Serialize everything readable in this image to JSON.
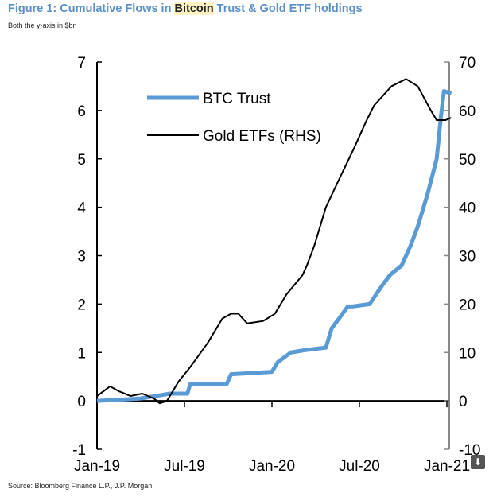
{
  "title_pre": "Figure 1: Cumulative Flows in ",
  "title_hl": "Bitcoin",
  "title_post": " Trust & Gold ETF holdings",
  "subtitle": "Both the y-axis in $bn",
  "source": "Source: Bloomberg Finance L.P., J.P. Morgan",
  "chart_data": {
    "type": "line",
    "title": "Figure 1: Cumulative Flows in Bitcoin Trust & Gold ETF holdings",
    "x_unit": "months since Jan-19",
    "xlim": [
      0,
      24
    ],
    "x_ticks": [
      {
        "v": 0,
        "label": "Jan-19"
      },
      {
        "v": 6,
        "label": "Jul-19"
      },
      {
        "v": 12,
        "label": "Jan-20"
      },
      {
        "v": 18,
        "label": "Jul-20"
      },
      {
        "v": 24,
        "label": "Jan-21"
      }
    ],
    "ylim_left": [
      -1,
      7
    ],
    "y_ticks_left": [
      "-1",
      "0",
      "1",
      "2",
      "3",
      "4",
      "5",
      "6",
      "7"
    ],
    "ylim_right": [
      -10,
      70
    ],
    "y_ticks_right": [
      "-10",
      "0",
      "10",
      "20",
      "30",
      "40",
      "50",
      "60",
      "70"
    ],
    "legend": "top-left",
    "series": [
      {
        "name": "BTC Trust",
        "axis": "left",
        "color": "#5b9bd5",
        "x": [
          0,
          2,
          3,
          4,
          5,
          6,
          6.2,
          6.4,
          8.9,
          9.2,
          12.0,
          12.4,
          13.3,
          14.3,
          15.7,
          16.1,
          16.6,
          17.2,
          17.5,
          18.7,
          19.6,
          20.1,
          20.9,
          21.5,
          22.0,
          22.7,
          23.3,
          23.6,
          23.8,
          24.3
        ],
        "y": [
          0,
          0.03,
          0.05,
          0.1,
          0.15,
          0.15,
          0.15,
          0.35,
          0.35,
          0.55,
          0.6,
          0.8,
          1.0,
          1.05,
          1.1,
          1.5,
          1.7,
          1.95,
          1.95,
          2.0,
          2.4,
          2.6,
          2.8,
          3.2,
          3.6,
          4.3,
          5.0,
          5.9,
          6.4,
          6.35
        ]
      },
      {
        "name": "Gold ETFs (RHS)",
        "axis": "right",
        "color": "#000000",
        "x": [
          0,
          0.9,
          1.5,
          2.3,
          3.1,
          3.9,
          4.3,
          4.8,
          5.6,
          6.4,
          7.6,
          8.6,
          9.2,
          9.7,
          10.3,
          11.4,
          12.2,
          13.0,
          14.1,
          14.4,
          14.9,
          15.7,
          16.8,
          17.6,
          18.5,
          19.0,
          20.2,
          21.2,
          22.0,
          22.9,
          23.3,
          23.9,
          24.3
        ],
        "y": [
          1,
          3,
          2,
          1,
          1.5,
          0.5,
          -0.5,
          0,
          4,
          7,
          12,
          17,
          18,
          18,
          16,
          16.5,
          18,
          22,
          26,
          28,
          32,
          40,
          47,
          52,
          58,
          61,
          65,
          66.5,
          65,
          60,
          58,
          58,
          58.5
        ]
      }
    ]
  }
}
